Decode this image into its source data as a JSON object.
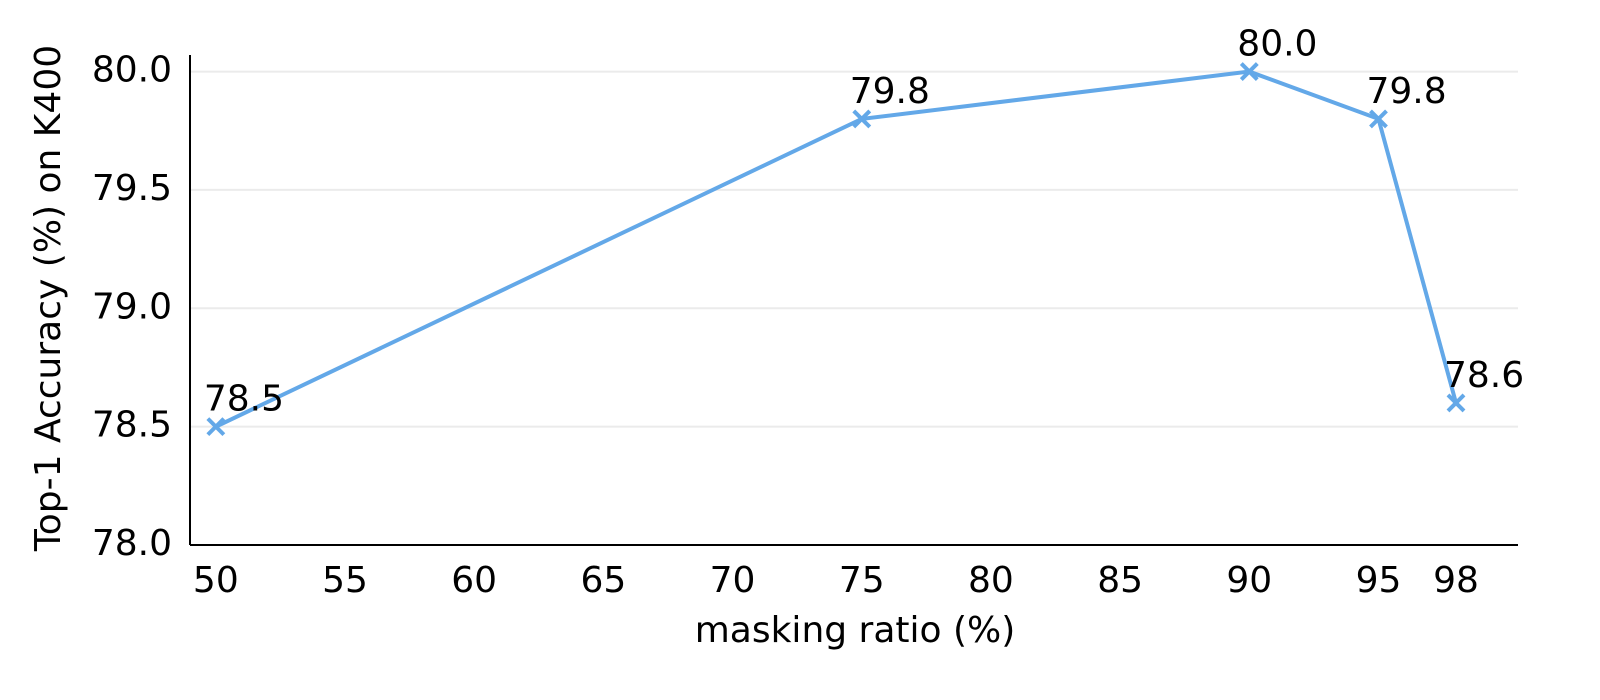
{
  "chart_data": {
    "type": "line",
    "xlabel": "masking ratio (%)",
    "ylabel": "Top-1 Accuracy (%) on K400",
    "x": [
      50,
      75,
      90,
      95,
      98
    ],
    "series": [
      {
        "color": "#63a8e8",
        "marker": "x",
        "values": [
          78.5,
          79.8,
          80.0,
          79.8,
          78.6
        ],
        "value_labels": [
          "78.5",
          "79.8",
          "80.0",
          "79.8",
          "78.6"
        ]
      }
    ],
    "xlim": [
      49,
      100.4
    ],
    "xticks": [
      50,
      55,
      60,
      65,
      70,
      75,
      80,
      85,
      90,
      95,
      98
    ],
    "ylim": [
      78,
      80.07
    ],
    "yticks": [
      {
        "value": 78,
        "label": "78.0"
      },
      78.5,
      {
        "value": 79,
        "label": "79.0"
      },
      79.5,
      {
        "value": 80,
        "label": "80.0"
      }
    ],
    "grid": "y"
  }
}
